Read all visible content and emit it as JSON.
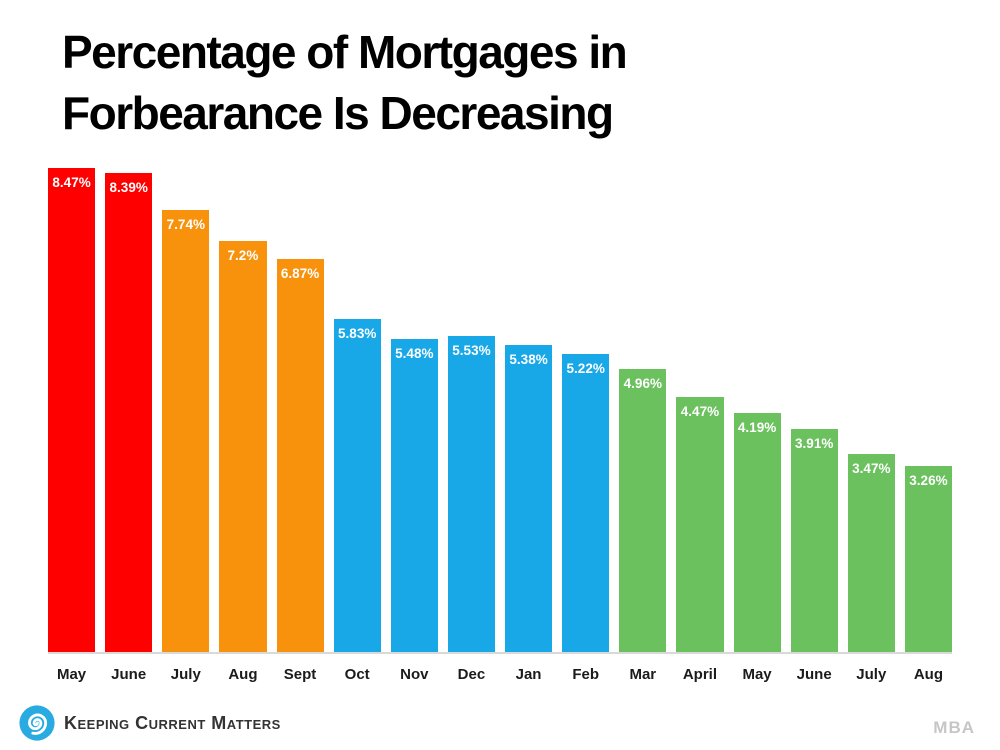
{
  "title": {
    "line1": "Percentage of Mortgages in",
    "line2": "Forbearance Is Decreasing"
  },
  "chart_data": {
    "type": "bar",
    "title": "Percentage of Mortgages in Forbearance Is Decreasing",
    "categories": [
      "May",
      "June",
      "July",
      "Aug",
      "Sept",
      "Oct",
      "Nov",
      "Dec",
      "Jan",
      "Feb",
      "Mar",
      "April",
      "May",
      "June",
      "July",
      "Aug"
    ],
    "values": [
      8.47,
      8.39,
      7.74,
      7.2,
      6.87,
      5.83,
      5.48,
      5.53,
      5.38,
      5.22,
      4.96,
      4.47,
      4.19,
      3.91,
      3.47,
      3.26
    ],
    "value_labels": [
      "8.47%",
      "8.39%",
      "7.74%",
      "7.2%",
      "6.87%",
      "5.83%",
      "5.48%",
      "5.53%",
      "5.38%",
      "5.22%",
      "4.96%",
      "4.47%",
      "4.19%",
      "3.91%",
      "3.47%",
      "3.26%"
    ],
    "bar_colors": [
      "#FE0000",
      "#FE0000",
      "#F8920D",
      "#F8920D",
      "#F8920D",
      "#18A8E8",
      "#18A8E8",
      "#18A8E8",
      "#18A8E8",
      "#18A8E8",
      "#6BC15E",
      "#6BC15E",
      "#6BC15E",
      "#6BC15E",
      "#6BC15E",
      "#6BC15E"
    ],
    "xlabel": "",
    "ylabel": "",
    "ylim": [
      0,
      8.47
    ],
    "grid": false,
    "legend": "none",
    "value_label_position": "inside-top",
    "axis_line_color": "#d9d9d9"
  },
  "footer": {
    "brand": "Keeping Current Matters",
    "brand_color": "#29ABE2",
    "source": "MBA"
  }
}
